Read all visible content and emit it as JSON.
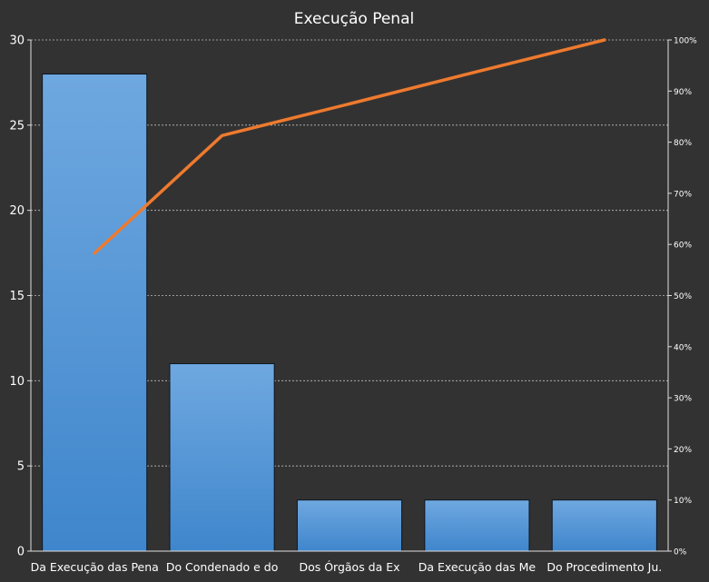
{
  "chart_data": {
    "type": "bar",
    "title": "Execução  Penal",
    "categories": [
      "Da Execução das Pena",
      "Do Condenado  e do",
      "Dos Órgãos da Ex",
      "Da Execução das Me",
      "Do Procedimento  Ju."
    ],
    "series": [
      {
        "type": "bar",
        "values": [
          28,
          11,
          3,
          3,
          3
        ]
      },
      {
        "type": "line",
        "axis": "secondary",
        "values": [
          58.3,
          81.3,
          87.5,
          93.8,
          100
        ]
      }
    ],
    "y_ticks": [
      "0",
      "5",
      "10",
      "15",
      "20",
      "25",
      "30"
    ],
    "y2_ticks": [
      "0%",
      "10%",
      "20%",
      "30%",
      "40%",
      "50%",
      "60%",
      "70%",
      "80%",
      "90%",
      "100%"
    ],
    "ylim": [
      0,
      30
    ],
    "y2lim": [
      0,
      100
    ],
    "grid": true,
    "legend": "none",
    "colors": {
      "background": "#333232",
      "bar_fill_top": "#6fa8e0",
      "bar_fill_bottom": "#3f86cc",
      "bar_stroke": "#0d1620",
      "line": "#ee7a2e",
      "grid": "#bfbfbf",
      "text": "#ffffff"
    }
  }
}
